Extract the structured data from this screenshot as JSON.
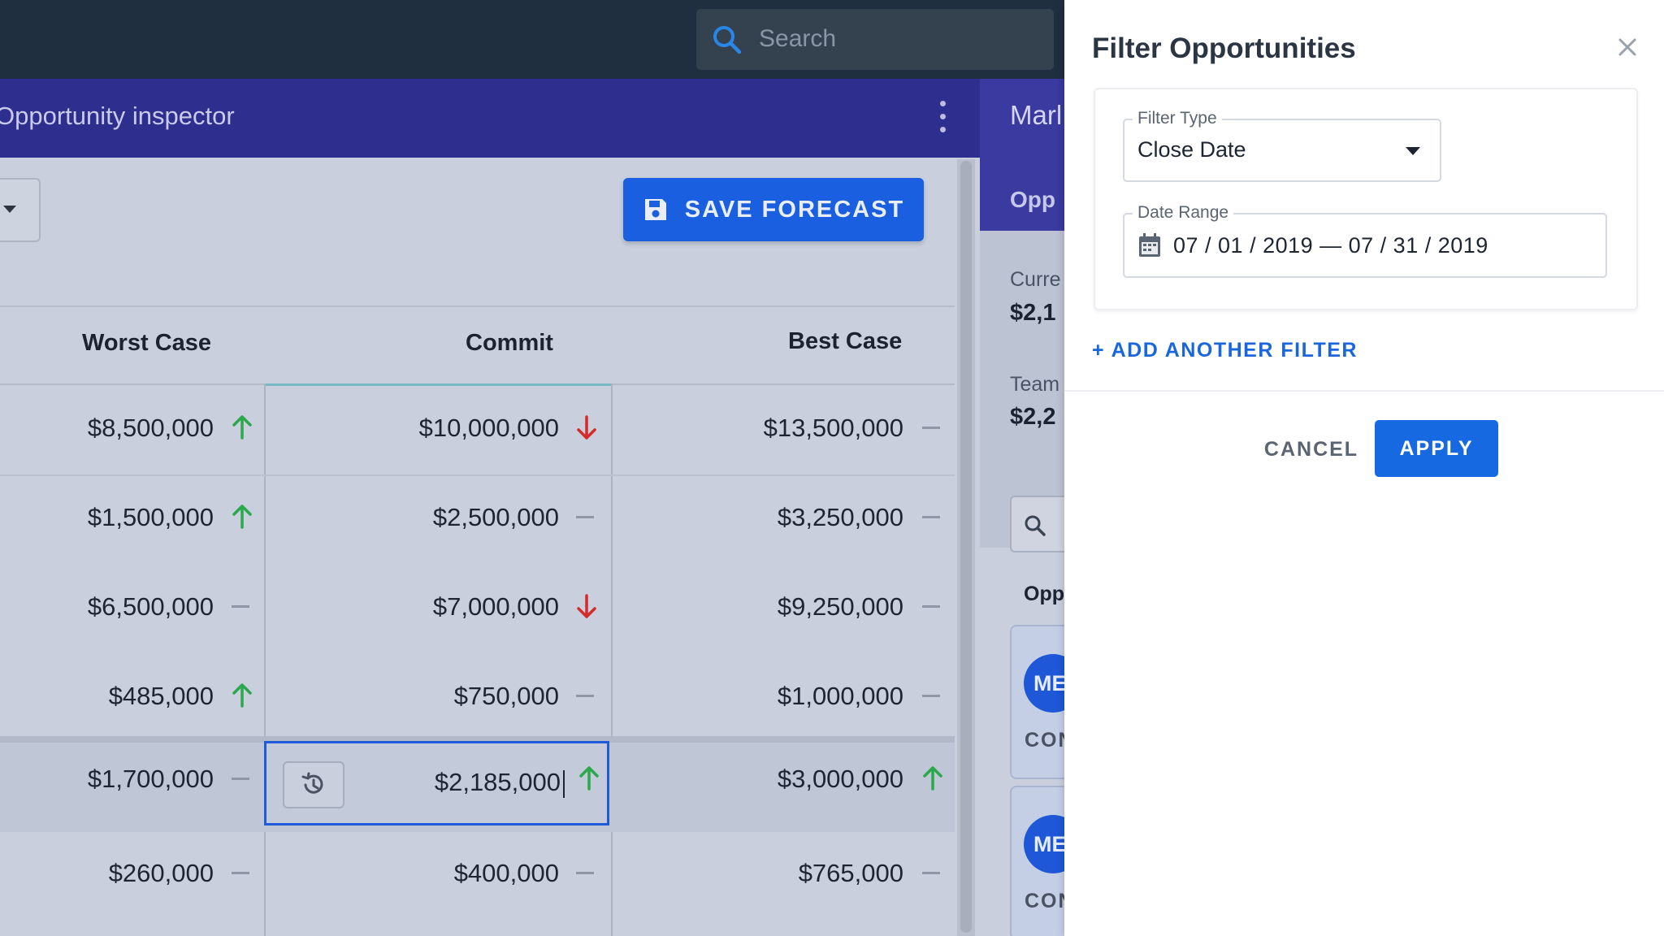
{
  "search": {
    "placeholder": "Search"
  },
  "inspector": {
    "title": "Opportunity inspector"
  },
  "toolbar": {
    "save_label": "SAVE FORECAST"
  },
  "grid": {
    "headers": {
      "worst": "Worst Case",
      "commit": "Commit",
      "best": "Best Case"
    },
    "rows": [
      {
        "worst": "$8,500,000",
        "worst_trend": "up",
        "commit": "$10,000,000",
        "commit_trend": "down",
        "best": "$13,500,000",
        "best_trend": "flat"
      },
      {
        "worst": "$1,500,000",
        "worst_trend": "up",
        "commit": "$2,500,000",
        "commit_trend": "flat",
        "best": "$3,250,000",
        "best_trend": "flat"
      },
      {
        "worst": "$6,500,000",
        "worst_trend": "flat",
        "commit": "$7,000,000",
        "commit_trend": "down",
        "best": "$9,250,000",
        "best_trend": "flat"
      },
      {
        "worst": "$485,000",
        "worst_trend": "up",
        "commit": "$750,000",
        "commit_trend": "flat",
        "best": "$1,000,000",
        "best_trend": "flat"
      },
      {
        "worst": "$1,700,000",
        "worst_trend": "flat",
        "commit": "$2,185,000",
        "commit_trend": "up",
        "best": "$3,000,000",
        "best_trend": "up"
      },
      {
        "worst": "$260,000",
        "worst_trend": "flat",
        "commit": "$400,000",
        "commit_trend": "flat",
        "best": "$765,000",
        "best_trend": "flat"
      }
    ]
  },
  "side_panel": {
    "header_title": "Marl",
    "subtitle": "Opp",
    "current_label": "Curre",
    "current_value": "$2,1",
    "team_label": "Team",
    "team_value": "$2,2",
    "opp_label": "Opp",
    "cards": [
      {
        "avatar": "ME",
        "caption": "CON"
      },
      {
        "avatar": "ME",
        "caption": "CON"
      }
    ]
  },
  "filter": {
    "title": "Filter Opportunities",
    "type_label": "Filter Type",
    "type_value": "Close Date",
    "range_label": "Date Range",
    "range_value": "07 / 01 / 2019  —  07 / 31 / 2019",
    "add_filter": "+ ADD ANOTHER FILTER",
    "cancel": "CANCEL",
    "apply": "APPLY"
  },
  "colors": {
    "up": "#2aa84a",
    "down": "#d42a2a",
    "flat": "#8f97a6",
    "accent": "#1a5fe0"
  }
}
